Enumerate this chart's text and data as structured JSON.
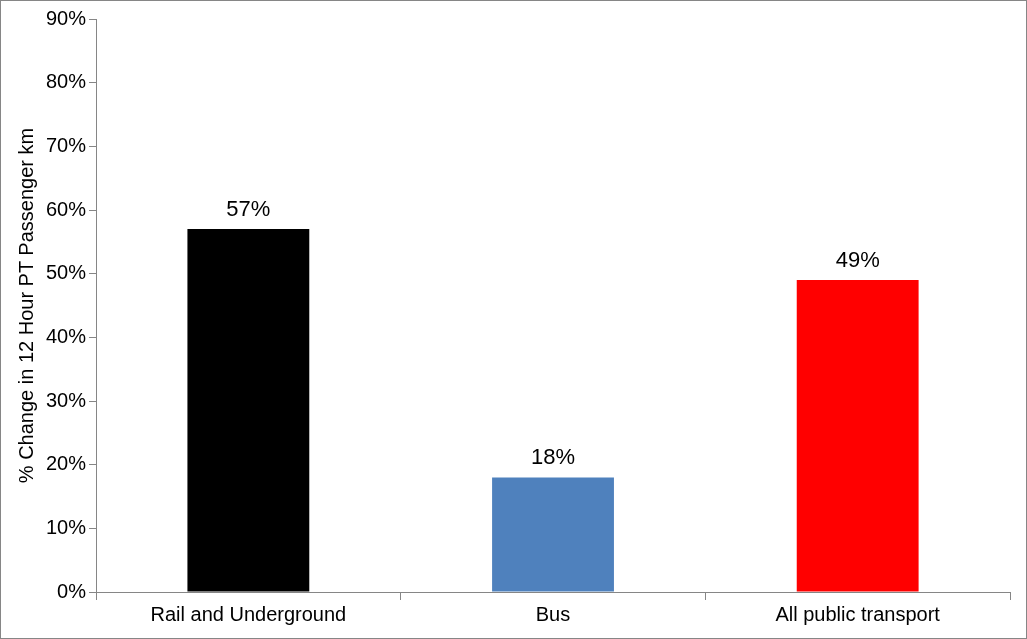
{
  "chart_data": {
    "type": "bar",
    "ylabel": "% Change in 12 Hour PT Passenger km",
    "categories": [
      "Rail and Underground",
      "Bus",
      "All public transport"
    ],
    "values": [
      57,
      18,
      49
    ],
    "colors": [
      "#000000",
      "#4f81bd",
      "#ff0000"
    ],
    "ylim": [
      0,
      90
    ],
    "yticks": [
      {
        "value": 0,
        "label": "0%"
      },
      {
        "value": 10,
        "label": "10%"
      },
      {
        "value": 20,
        "label": "20%"
      },
      {
        "value": 30,
        "label": "30%"
      },
      {
        "value": 40,
        "label": "40%"
      },
      {
        "value": 50,
        "label": "50%"
      },
      {
        "value": 60,
        "label": "60%"
      },
      {
        "value": 70,
        "label": "70%"
      },
      {
        "value": 80,
        "label": "80%"
      },
      {
        "value": 90,
        "label": "90%"
      }
    ],
    "value_labels": [
      "57%",
      "18%",
      "49%"
    ],
    "grid": false,
    "legend": false
  }
}
